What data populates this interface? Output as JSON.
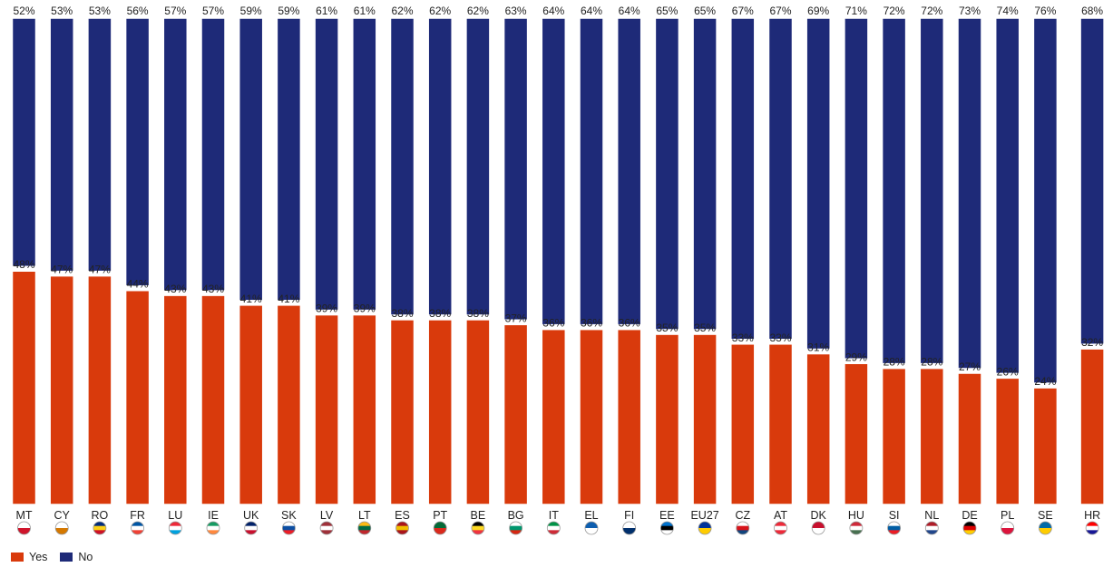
{
  "chart_data": {
    "type": "bar",
    "stacked": true,
    "categories": [
      "MT",
      "CY",
      "RO",
      "FR",
      "LU",
      "IE",
      "UK",
      "SK",
      "LV",
      "LT",
      "ES",
      "PT",
      "BE",
      "BG",
      "IT",
      "EL",
      "FI",
      "EE",
      "EU27",
      "CZ",
      "AT",
      "DK",
      "HU",
      "SI",
      "NL",
      "DE",
      "PL",
      "SE",
      "HR"
    ],
    "series": [
      {
        "name": "Yes",
        "color": "#d93a0c",
        "values": [
          48,
          47,
          47,
          44,
          43,
          43,
          41,
          41,
          39,
          39,
          38,
          38,
          38,
          37,
          36,
          36,
          36,
          35,
          35,
          33,
          33,
          31,
          29,
          28,
          28,
          27,
          26,
          24,
          32
        ],
        "labels": [
          "48%",
          "47%",
          "47%",
          "44%",
          "43%",
          "43%",
          "41%",
          "41%",
          "39%",
          "39%",
          "38%",
          "38%",
          "38%",
          "37%",
          "36%",
          "36%",
          "36%",
          "35%",
          "35%",
          "33%",
          "33%",
          "31%",
          "29%",
          "28%",
          "28%",
          "27%",
          "26%",
          "24%",
          "32%"
        ]
      },
      {
        "name": "No",
        "color": "#1e2a78",
        "values": [
          52,
          53,
          53,
          56,
          57,
          57,
          59,
          59,
          61,
          61,
          62,
          62,
          62,
          63,
          64,
          64,
          64,
          65,
          65,
          67,
          67,
          69,
          71,
          72,
          72,
          73,
          74,
          76,
          68
        ],
        "labels": [
          "52%",
          "53%",
          "53%",
          "56%",
          "57%",
          "57%",
          "59%",
          "59%",
          "61%",
          "61%",
          "62%",
          "62%",
          "62%",
          "63%",
          "64%",
          "64%",
          "64%",
          "65%",
          "65%",
          "67%",
          "67%",
          "69%",
          "71%",
          "72%",
          "72%",
          "73%",
          "74%",
          "76%",
          "68%"
        ]
      }
    ],
    "ylim": [
      0,
      100
    ],
    "title": "",
    "xlabel": "",
    "ylabel": "",
    "grid": false,
    "legend_position": "bottom-left",
    "flags": [
      {
        "code": "MT",
        "colors": [
          "#ffffff",
          "#cf142b"
        ]
      },
      {
        "code": "CY",
        "colors": [
          "#ffffff",
          "#d57800"
        ]
      },
      {
        "code": "RO",
        "colors": [
          "#002b7f",
          "#fcd116",
          "#ce1126"
        ]
      },
      {
        "code": "FR",
        "colors": [
          "#0055a4",
          "#ffffff",
          "#ef4135"
        ]
      },
      {
        "code": "LU",
        "colors": [
          "#ed2939",
          "#ffffff",
          "#00a1de"
        ]
      },
      {
        "code": "IE",
        "colors": [
          "#169b62",
          "#ffffff",
          "#ff883e"
        ]
      },
      {
        "code": "UK",
        "colors": [
          "#012169",
          "#ffffff",
          "#c8102e"
        ]
      },
      {
        "code": "SK",
        "colors": [
          "#ffffff",
          "#0b4ea2",
          "#ee1c25"
        ]
      },
      {
        "code": "LV",
        "colors": [
          "#9e3039",
          "#ffffff",
          "#9e3039"
        ]
      },
      {
        "code": "LT",
        "colors": [
          "#fdb913",
          "#006a44",
          "#c1272d"
        ]
      },
      {
        "code": "ES",
        "colors": [
          "#aa151b",
          "#f1bf00",
          "#aa151b"
        ]
      },
      {
        "code": "PT",
        "colors": [
          "#046a38",
          "#da291c"
        ]
      },
      {
        "code": "BE",
        "colors": [
          "#000000",
          "#fdda24",
          "#ef3340"
        ]
      },
      {
        "code": "BG",
        "colors": [
          "#ffffff",
          "#00966e",
          "#d62612"
        ]
      },
      {
        "code": "IT",
        "colors": [
          "#009246",
          "#ffffff",
          "#ce2b37"
        ]
      },
      {
        "code": "EL",
        "colors": [
          "#0d5eaf",
          "#ffffff"
        ]
      },
      {
        "code": "FI",
        "colors": [
          "#ffffff",
          "#002f6c"
        ]
      },
      {
        "code": "EE",
        "colors": [
          "#0072ce",
          "#000000",
          "#ffffff"
        ]
      },
      {
        "code": "EU27",
        "colors": [
          "#003399",
          "#ffcc00"
        ]
      },
      {
        "code": "CZ",
        "colors": [
          "#ffffff",
          "#d7141a",
          "#11457e"
        ]
      },
      {
        "code": "AT",
        "colors": [
          "#ed2939",
          "#ffffff",
          "#ed2939"
        ]
      },
      {
        "code": "DK",
        "colors": [
          "#c8102e",
          "#ffffff"
        ]
      },
      {
        "code": "HU",
        "colors": [
          "#ce2939",
          "#ffffff",
          "#477050"
        ]
      },
      {
        "code": "SI",
        "colors": [
          "#ffffff",
          "#005da4",
          "#ed1c24"
        ]
      },
      {
        "code": "NL",
        "colors": [
          "#ae1c28",
          "#ffffff",
          "#21468b"
        ]
      },
      {
        "code": "DE",
        "colors": [
          "#000000",
          "#dd0000",
          "#ffce00"
        ]
      },
      {
        "code": "PL",
        "colors": [
          "#ffffff",
          "#dc143c"
        ]
      },
      {
        "code": "SE",
        "colors": [
          "#006aa7",
          "#fecc00"
        ]
      },
      {
        "code": "HR",
        "colors": [
          "#ff0000",
          "#ffffff",
          "#171796"
        ]
      }
    ]
  },
  "legend": [
    {
      "label": "Yes",
      "color": "#d93a0c"
    },
    {
      "label": "No",
      "color": "#1e2a78"
    }
  ]
}
